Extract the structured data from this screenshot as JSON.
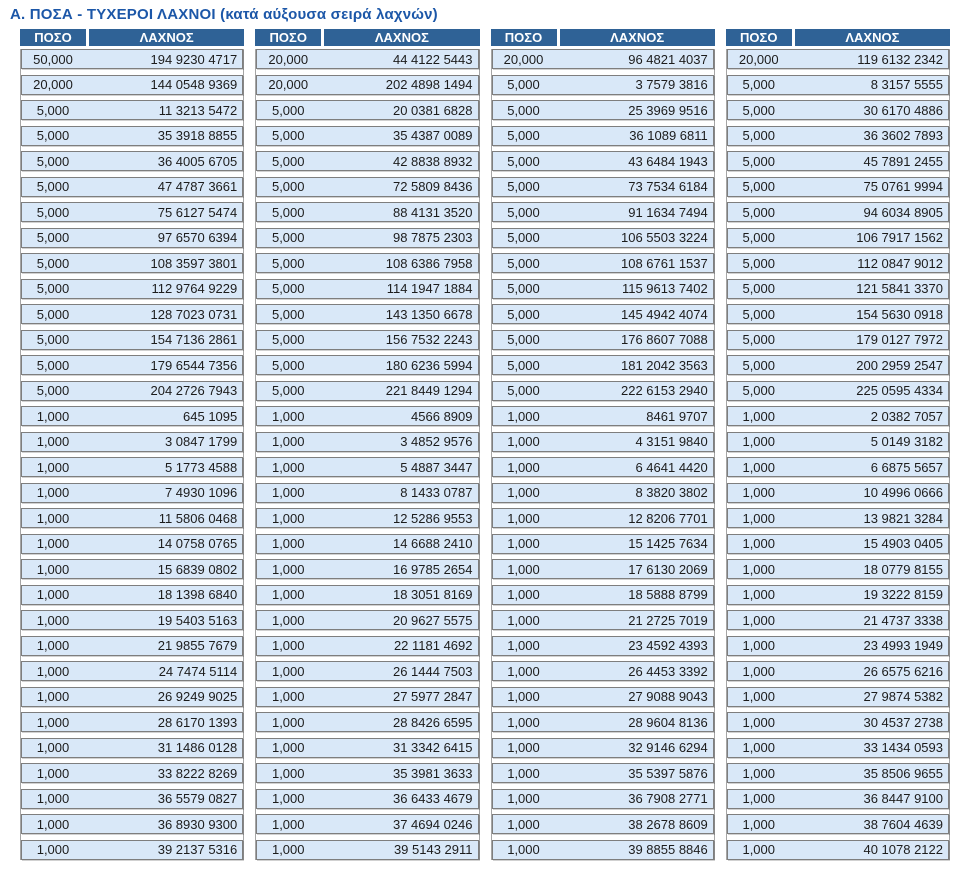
{
  "title": "Α. ΠΟΣΑ - ΤΥΧΕΡΟΙ ΛΑΧΝΟΙ (κατά αύξουσα σειρά λαχνών)",
  "columns": {
    "amount": "ΠΟΣΟ",
    "number": "ΛΑΧΝΟΣ"
  },
  "colors": {
    "title_color": "#1c57a8",
    "header_bg": "#2f6296",
    "row_bg": "#d9e8f8"
  },
  "groups": [
    {
      "rows": [
        {
          "amount": "50,000",
          "number": "194 9230 4717"
        },
        {
          "amount": "20,000",
          "number": "144 0548 9369"
        },
        {
          "amount": "5,000",
          "number": "11 3213 5472"
        },
        {
          "amount": "5,000",
          "number": "35 3918 8855"
        },
        {
          "amount": "5,000",
          "number": "36 4005 6705"
        },
        {
          "amount": "5,000",
          "number": "47 4787 3661"
        },
        {
          "amount": "5,000",
          "number": "75 6127 5474"
        },
        {
          "amount": "5,000",
          "number": "97 6570 6394"
        },
        {
          "amount": "5,000",
          "number": "108 3597 3801"
        },
        {
          "amount": "5,000",
          "number": "112 9764 9229"
        },
        {
          "amount": "5,000",
          "number": "128 7023 0731"
        },
        {
          "amount": "5,000",
          "number": "154 7136 2861"
        },
        {
          "amount": "5,000",
          "number": "179 6544 7356"
        },
        {
          "amount": "5,000",
          "number": "204 2726 7943"
        },
        {
          "amount": "1,000",
          "number": "645 1095"
        },
        {
          "amount": "1,000",
          "number": "3 0847 1799"
        },
        {
          "amount": "1,000",
          "number": "5 1773 4588"
        },
        {
          "amount": "1,000",
          "number": "7 4930 1096"
        },
        {
          "amount": "1,000",
          "number": "11 5806 0468"
        },
        {
          "amount": "1,000",
          "number": "14 0758 0765"
        },
        {
          "amount": "1,000",
          "number": "15 6839 0802"
        },
        {
          "amount": "1,000",
          "number": "18 1398 6840"
        },
        {
          "amount": "1,000",
          "number": "19 5403 5163"
        },
        {
          "amount": "1,000",
          "number": "21 9855 7679"
        },
        {
          "amount": "1,000",
          "number": "24 7474 5114"
        },
        {
          "amount": "1,000",
          "number": "26 9249 9025"
        },
        {
          "amount": "1,000",
          "number": "28 6170 1393"
        },
        {
          "amount": "1,000",
          "number": "31 1486 0128"
        },
        {
          "amount": "1,000",
          "number": "33 8222 8269"
        },
        {
          "amount": "1,000",
          "number": "36 5579 0827"
        },
        {
          "amount": "1,000",
          "number": "36 8930 9300"
        },
        {
          "amount": "1,000",
          "number": "39 2137 5316"
        }
      ]
    },
    {
      "rows": [
        {
          "amount": "20,000",
          "number": "44 4122 5443"
        },
        {
          "amount": "20,000",
          "number": "202 4898 1494"
        },
        {
          "amount": "5,000",
          "number": "20 0381 6828"
        },
        {
          "amount": "5,000",
          "number": "35 4387 0089"
        },
        {
          "amount": "5,000",
          "number": "42 8838 8932"
        },
        {
          "amount": "5,000",
          "number": "72 5809 8436"
        },
        {
          "amount": "5,000",
          "number": "88 4131 3520"
        },
        {
          "amount": "5,000",
          "number": "98 7875 2303"
        },
        {
          "amount": "5,000",
          "number": "108 6386 7958"
        },
        {
          "amount": "5,000",
          "number": "114 1947 1884"
        },
        {
          "amount": "5,000",
          "number": "143 1350 6678"
        },
        {
          "amount": "5,000",
          "number": "156 7532 2243"
        },
        {
          "amount": "5,000",
          "number": "180 6236 5994"
        },
        {
          "amount": "5,000",
          "number": "221 8449 1294"
        },
        {
          "amount": "1,000",
          "number": "4566 8909"
        },
        {
          "amount": "1,000",
          "number": "3 4852 9576"
        },
        {
          "amount": "1,000",
          "number": "5 4887 3447"
        },
        {
          "amount": "1,000",
          "number": "8 1433 0787"
        },
        {
          "amount": "1,000",
          "number": "12 5286 9553"
        },
        {
          "amount": "1,000",
          "number": "14 6688 2410"
        },
        {
          "amount": "1,000",
          "number": "16 9785 2654"
        },
        {
          "amount": "1,000",
          "number": "18 3051 8169"
        },
        {
          "amount": "1,000",
          "number": "20 9627 5575"
        },
        {
          "amount": "1,000",
          "number": "22 1181 4692"
        },
        {
          "amount": "1,000",
          "number": "26 1444 7503"
        },
        {
          "amount": "1,000",
          "number": "27 5977 2847"
        },
        {
          "amount": "1,000",
          "number": "28 8426 6595"
        },
        {
          "amount": "1,000",
          "number": "31 3342 6415"
        },
        {
          "amount": "1,000",
          "number": "35 3981 3633"
        },
        {
          "amount": "1,000",
          "number": "36 6433 4679"
        },
        {
          "amount": "1,000",
          "number": "37 4694 0246"
        },
        {
          "amount": "1,000",
          "number": "39 5143 2911"
        }
      ]
    },
    {
      "rows": [
        {
          "amount": "20,000",
          "number": "96 4821 4037"
        },
        {
          "amount": "5,000",
          "number": "3 7579 3816"
        },
        {
          "amount": "5,000",
          "number": "25 3969 9516"
        },
        {
          "amount": "5,000",
          "number": "36 1089 6811"
        },
        {
          "amount": "5,000",
          "number": "43 6484 1943"
        },
        {
          "amount": "5,000",
          "number": "73 7534 6184"
        },
        {
          "amount": "5,000",
          "number": "91 1634 7494"
        },
        {
          "amount": "5,000",
          "number": "106 5503 3224"
        },
        {
          "amount": "5,000",
          "number": "108 6761 1537"
        },
        {
          "amount": "5,000",
          "number": "115 9613 7402"
        },
        {
          "amount": "5,000",
          "number": "145 4942 4074"
        },
        {
          "amount": "5,000",
          "number": "176 8607 7088"
        },
        {
          "amount": "5,000",
          "number": "181 2042 3563"
        },
        {
          "amount": "5,000",
          "number": "222 6153 2940"
        },
        {
          "amount": "1,000",
          "number": "8461 9707"
        },
        {
          "amount": "1,000",
          "number": "4 3151 9840"
        },
        {
          "amount": "1,000",
          "number": "6 4641 4420"
        },
        {
          "amount": "1,000",
          "number": "8 3820 3802"
        },
        {
          "amount": "1,000",
          "number": "12 8206 7701"
        },
        {
          "amount": "1,000",
          "number": "15 1425 7634"
        },
        {
          "amount": "1,000",
          "number": "17 6130 2069"
        },
        {
          "amount": "1,000",
          "number": "18 5888 8799"
        },
        {
          "amount": "1,000",
          "number": "21 2725 7019"
        },
        {
          "amount": "1,000",
          "number": "23 4592 4393"
        },
        {
          "amount": "1,000",
          "number": "26 4453 3392"
        },
        {
          "amount": "1,000",
          "number": "27 9088 9043"
        },
        {
          "amount": "1,000",
          "number": "28 9604 8136"
        },
        {
          "amount": "1,000",
          "number": "32 9146 6294"
        },
        {
          "amount": "1,000",
          "number": "35 5397 5876"
        },
        {
          "amount": "1,000",
          "number": "36 7908 2771"
        },
        {
          "amount": "1,000",
          "number": "38 2678 8609"
        },
        {
          "amount": "1,000",
          "number": "39 8855 8846"
        }
      ]
    },
    {
      "rows": [
        {
          "amount": "20,000",
          "number": "119 6132 2342"
        },
        {
          "amount": "5,000",
          "number": "8 3157 5555"
        },
        {
          "amount": "5,000",
          "number": "30 6170 4886"
        },
        {
          "amount": "5,000",
          "number": "36 3602 7893"
        },
        {
          "amount": "5,000",
          "number": "45 7891 2455"
        },
        {
          "amount": "5,000",
          "number": "75 0761 9994"
        },
        {
          "amount": "5,000",
          "number": "94 6034 8905"
        },
        {
          "amount": "5,000",
          "number": "106 7917 1562"
        },
        {
          "amount": "5,000",
          "number": "112 0847 9012"
        },
        {
          "amount": "5,000",
          "number": "121 5841 3370"
        },
        {
          "amount": "5,000",
          "number": "154 5630 0918"
        },
        {
          "amount": "5,000",
          "number": "179 0127 7972"
        },
        {
          "amount": "5,000",
          "number": "200 2959 2547"
        },
        {
          "amount": "5,000",
          "number": "225 0595 4334"
        },
        {
          "amount": "1,000",
          "number": "2 0382 7057"
        },
        {
          "amount": "1,000",
          "number": "5 0149 3182"
        },
        {
          "amount": "1,000",
          "number": "6 6875 5657"
        },
        {
          "amount": "1,000",
          "number": "10 4996 0666"
        },
        {
          "amount": "1,000",
          "number": "13 9821 3284"
        },
        {
          "amount": "1,000",
          "number": "15 4903 0405"
        },
        {
          "amount": "1,000",
          "number": "18 0779 8155"
        },
        {
          "amount": "1,000",
          "number": "19 3222 8159"
        },
        {
          "amount": "1,000",
          "number": "21 4737 3338"
        },
        {
          "amount": "1,000",
          "number": "23 4993 1949"
        },
        {
          "amount": "1,000",
          "number": "26 6575 6216"
        },
        {
          "amount": "1,000",
          "number": "27 9874 5382"
        },
        {
          "amount": "1,000",
          "number": "30 4537 2738"
        },
        {
          "amount": "1,000",
          "number": "33 1434 0593"
        },
        {
          "amount": "1,000",
          "number": "35 8506 9655"
        },
        {
          "amount": "1,000",
          "number": "36 8447 9100"
        },
        {
          "amount": "1,000",
          "number": "38 7604 4639"
        },
        {
          "amount": "1,000",
          "number": "40 1078 2122"
        }
      ]
    }
  ]
}
